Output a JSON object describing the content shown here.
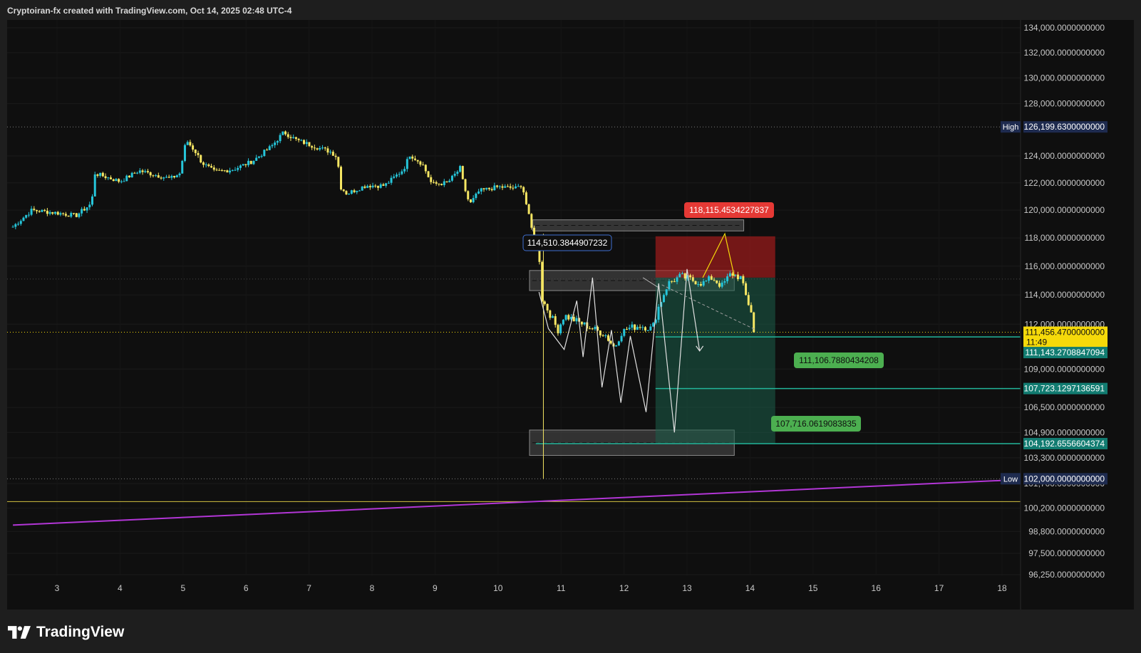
{
  "header": {
    "title": "Cryptoiran-fx created with TradingView.com, Oct 14, 2025 02:48 UTC-4"
  },
  "footer": {
    "logo_text": "TradingView"
  },
  "colors": {
    "background": "#0f0f0f",
    "candle_up": "#26c6da",
    "candle_down": "#f5e663",
    "last_price": "#f5d90a",
    "teal_line": "#22b59a",
    "target_label": "#4caf50",
    "stop_zone": "#b71c1c",
    "profit_zone": "#1b5e4a",
    "trendline": "#b236d6",
    "ma_line": "#d4c341"
  },
  "chart_data": {
    "type": "candlestick",
    "symbol": "",
    "x_ticks": [
      "3",
      "4",
      "5",
      "6",
      "7",
      "8",
      "9",
      "10",
      "11",
      "12",
      "13",
      "14",
      "15",
      "16",
      "17",
      "18"
    ],
    "y_scale": "log",
    "y_ticks": [
      "134,000.0000000000",
      "132,000.0000000000",
      "130,000.0000000000",
      "128,000.0000000000",
      "124,000.0000000000",
      "122,000.0000000000",
      "120,000.0000000000",
      "118,000.0000000000",
      "116,000.0000000000",
      "114,000.0000000000",
      "112,000.0000000000",
      "109,000.0000000000",
      "106,500.0000000000",
      "104,900.0000000000",
      "103,300.0000000000",
      "101,700.0000000000",
      "100,200.0000000000",
      "98,800.0000000000",
      "97,500.0000000000",
      "96,250.0000000000"
    ],
    "price_labels": {
      "high_tag": "High",
      "high_value": "126,199.6300000000",
      "low_tag": "Low",
      "low_value": "102,000.0000000000",
      "last_price": "111,456.4700000000",
      "countdown": "11:49",
      "level_1": "111,143.2708847094",
      "level_2": "107,723.1297136591",
      "level_3": "104,192.6556604374"
    },
    "annotations": {
      "stop_label": "118,115.4534227837",
      "entry_label": "114,510.3844907232",
      "target_1": "111,106.7880434208",
      "target_2": "107,716.0619083835"
    },
    "levels": {
      "high": 126199.63,
      "low": 102000,
      "last": 111456.47,
      "teal_1": 111143.27,
      "teal_2": 107723.13,
      "teal_3": 104192.66,
      "ma_flat": 100600
    },
    "trendline": {
      "x": [
        2.3,
        18.3
      ],
      "y": [
        99180,
        101950
      ]
    },
    "anchors": [
      [
        2.3,
        118800
      ],
      [
        2.6,
        120000
      ],
      [
        3.0,
        119800
      ],
      [
        3.3,
        119600
      ],
      [
        3.55,
        120500
      ],
      [
        3.6,
        122700
      ],
      [
        4.0,
        122100
      ],
      [
        4.3,
        122900
      ],
      [
        4.8,
        122300
      ],
      [
        4.95,
        122700
      ],
      [
        5.05,
        125200
      ],
      [
        5.2,
        124300
      ],
      [
        5.3,
        123500
      ],
      [
        5.5,
        122800
      ],
      [
        5.8,
        123000
      ],
      [
        6.1,
        123600
      ],
      [
        6.4,
        124700
      ],
      [
        6.6,
        125800
      ],
      [
        6.8,
        125200
      ],
      [
        7.1,
        124700
      ],
      [
        7.35,
        124300
      ],
      [
        7.45,
        123900
      ],
      [
        7.5,
        121700
      ],
      [
        7.6,
        121200
      ],
      [
        7.9,
        121800
      ],
      [
        8.2,
        121800
      ],
      [
        8.5,
        123000
      ],
      [
        8.6,
        124100
      ],
      [
        8.8,
        123400
      ],
      [
        8.95,
        121900
      ],
      [
        9.2,
        122000
      ],
      [
        9.35,
        122800
      ],
      [
        9.4,
        123100
      ],
      [
        9.45,
        121900
      ],
      [
        9.55,
        120400
      ],
      [
        9.7,
        121400
      ],
      [
        10.0,
        121700
      ],
      [
        10.3,
        121600
      ],
      [
        10.38,
        121900
      ],
      [
        10.45,
        120400
      ],
      [
        10.55,
        118300
      ],
      [
        10.65,
        117000
      ],
      [
        10.7,
        113700
      ],
      [
        10.8,
        112900
      ],
      [
        10.95,
        111600
      ],
      [
        11.05,
        112600
      ],
      [
        11.3,
        112100
      ],
      [
        11.5,
        111700
      ],
      [
        11.7,
        111300
      ],
      [
        11.85,
        110400
      ],
      [
        11.95,
        111400
      ],
      [
        12.05,
        111700
      ],
      [
        12.25,
        111900
      ],
      [
        12.45,
        111700
      ],
      [
        12.55,
        113200
      ],
      [
        12.7,
        114800
      ],
      [
        12.9,
        115300
      ],
      [
        13.1,
        115000
      ],
      [
        13.25,
        114800
      ],
      [
        13.4,
        115200
      ],
      [
        13.55,
        114600
      ],
      [
        13.7,
        115500
      ],
      [
        13.85,
        115200
      ],
      [
        13.95,
        113700
      ],
      [
        14.05,
        112500
      ],
      [
        14.1,
        111456
      ]
    ],
    "zones": [
      {
        "name": "upper-grey-zone",
        "x": [
          10.55,
          13.9
        ],
        "y": [
          118500,
          119300
        ]
      },
      {
        "name": "mid-grey-zone",
        "x": [
          10.5,
          13.75
        ],
        "y": [
          114300,
          115700
        ]
      },
      {
        "name": "low-grey-zone",
        "x": [
          10.5,
          13.75
        ],
        "y": [
          103450,
          105050
        ]
      },
      {
        "name": "stop-zone",
        "x": [
          12.5,
          14.4
        ],
        "y": [
          115200,
          118115
        ]
      },
      {
        "name": "profit-zone",
        "x": [
          12.5,
          14.4
        ],
        "y": [
          104192,
          115200
        ]
      }
    ],
    "white_zigzag": [
      [
        10.65,
        114200
      ],
      [
        10.8,
        111700
      ],
      [
        11.05,
        110300
      ],
      [
        11.25,
        113600
      ],
      [
        11.35,
        109800
      ],
      [
        11.5,
        115200
      ],
      [
        11.65,
        107800
      ],
      [
        11.8,
        111600
      ],
      [
        11.95,
        106800
      ],
      [
        12.1,
        111200
      ],
      [
        12.35,
        106200
      ],
      [
        12.55,
        114800
      ],
      [
        12.8,
        104900
      ],
      [
        13.0,
        115800
      ],
      [
        13.2,
        110200
      ]
    ],
    "projection_arrow": [
      [
        13.25,
        115200
      ],
      [
        13.6,
        118300
      ],
      [
        13.75,
        115300
      ]
    ],
    "dashed_projection": [
      [
        12.6,
        114700
      ],
      [
        14.1,
        111600
      ]
    ],
    "connector_line": [
      [
        12.3,
        115200
      ],
      [
        12.55,
        114500
      ]
    ]
  }
}
